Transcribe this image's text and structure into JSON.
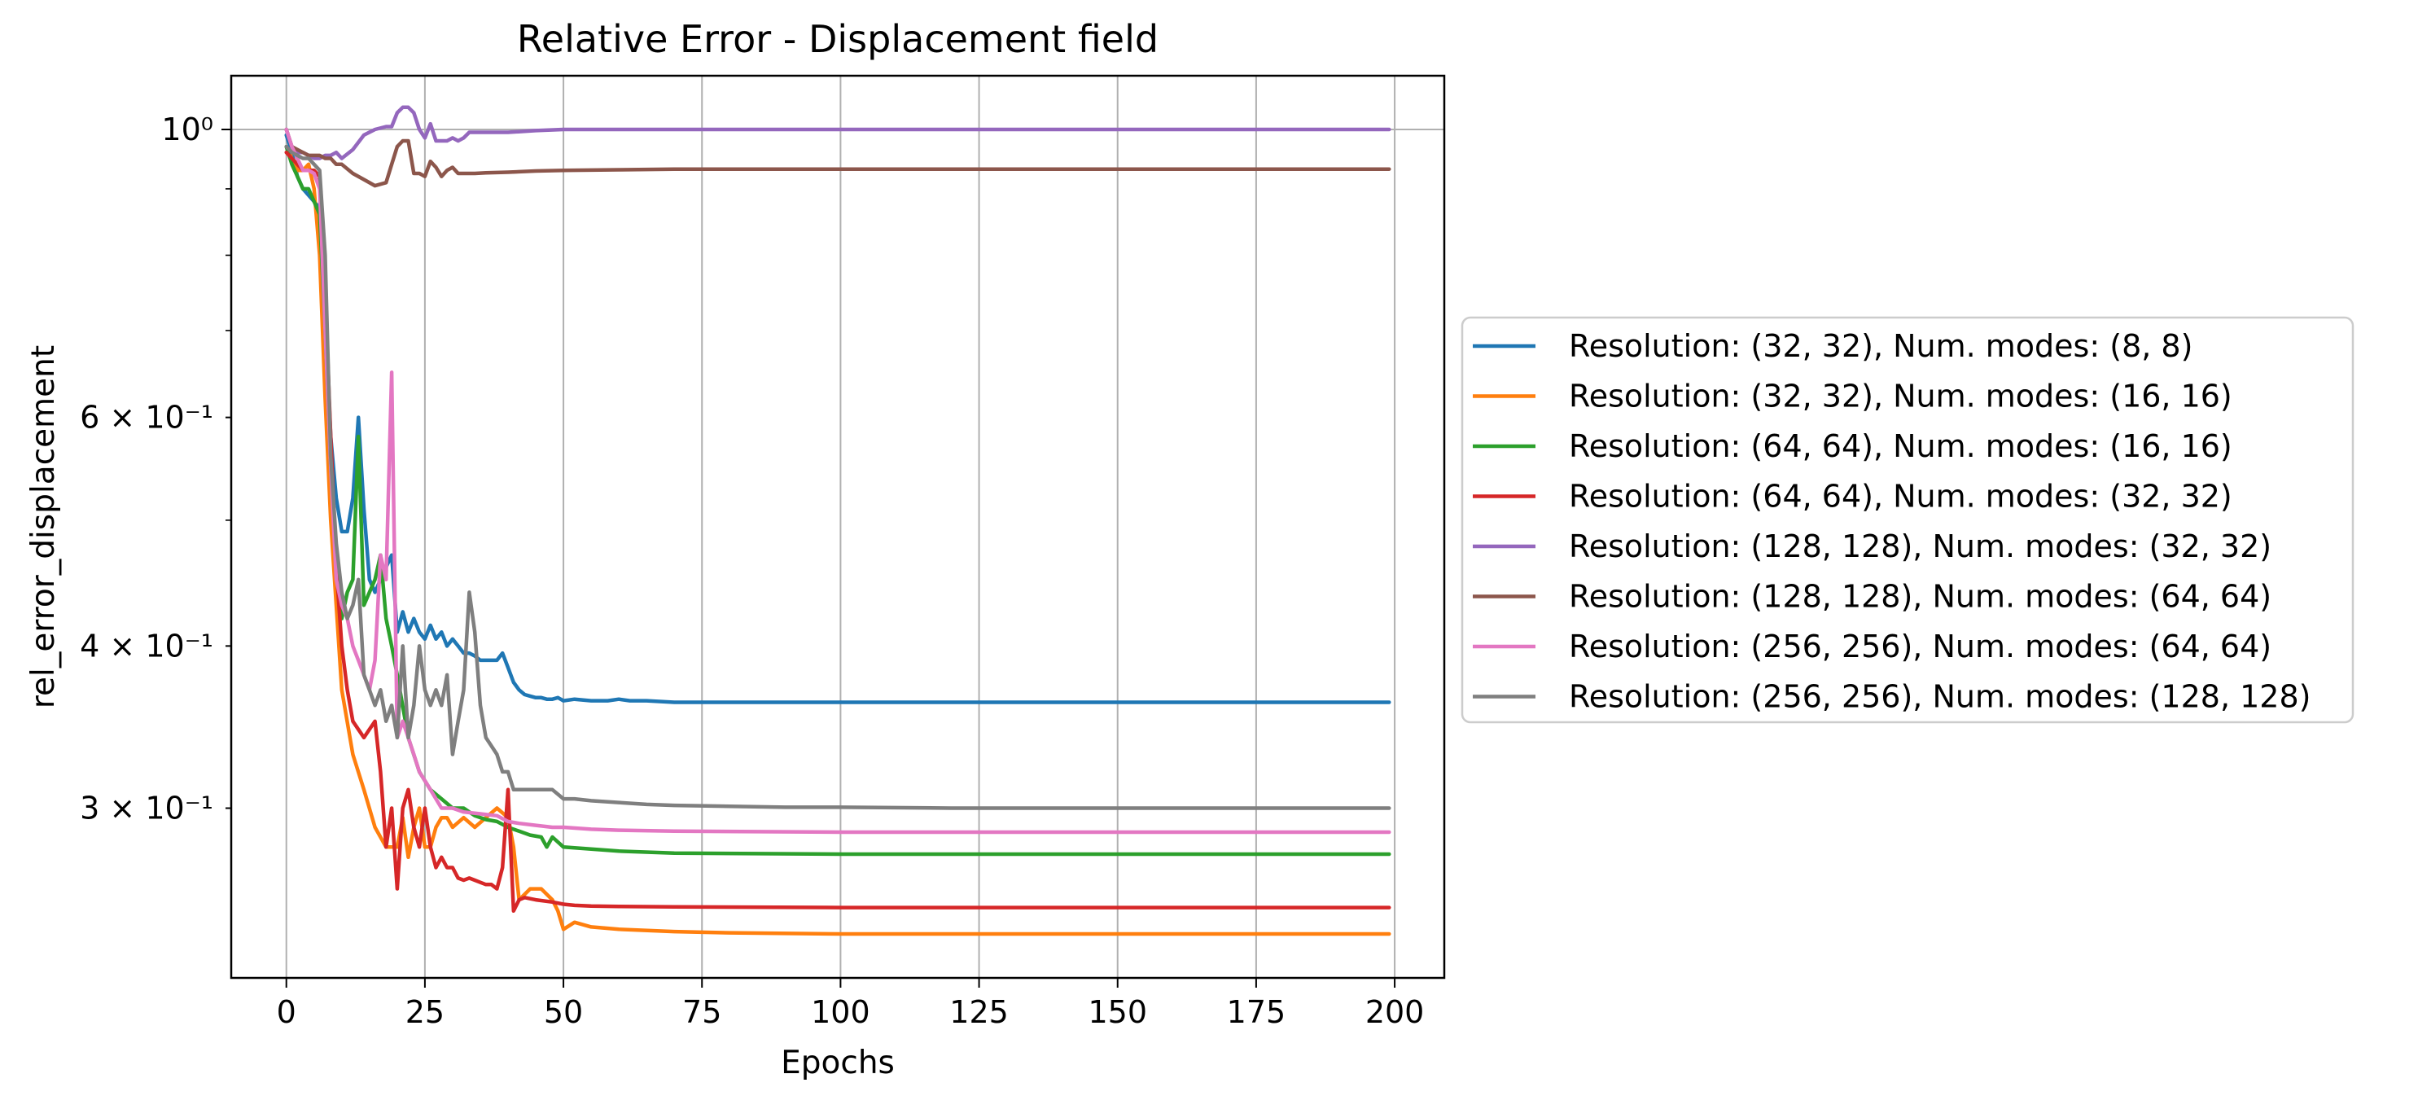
{
  "chart_data": {
    "type": "line",
    "title": "Relative Error - Displacement field",
    "xlabel": "Epochs",
    "ylabel": "rel_error_displacement",
    "xlim": [
      -9.95,
      208.95
    ],
    "ylim": [
      0.222,
      1.1
    ],
    "yscale": "log",
    "grid": true,
    "legend_position": "right, outside plot",
    "x_ticks": [
      0,
      25,
      50,
      75,
      100,
      125,
      150,
      175,
      200
    ],
    "x_tick_labels": [
      "0",
      "25",
      "50",
      "75",
      "100",
      "125",
      "150",
      "175",
      "200"
    ],
    "y_ticks": [
      1.0,
      0.6,
      0.4,
      0.3
    ],
    "y_tick_labels": [
      "10⁰",
      "6 × 10⁻¹",
      "4 × 10⁻¹",
      "3 × 10⁻¹"
    ],
    "series": [
      {
        "name": "Resolution: (32, 32), Num. modes: (8, 8)",
        "color": "#1f77b4",
        "x": [
          0,
          1,
          2,
          3,
          4,
          5,
          6,
          7,
          8,
          9,
          10,
          11,
          12,
          13,
          14,
          15,
          16,
          17,
          18,
          19,
          20,
          21,
          22,
          23,
          24,
          25,
          26,
          27,
          28,
          29,
          30,
          31,
          32,
          33,
          34,
          35,
          36,
          37,
          38,
          39,
          40,
          41,
          42,
          43,
          44,
          45,
          46,
          47,
          48,
          49,
          50,
          52,
          55,
          58,
          60,
          62,
          65,
          70,
          80,
          90,
          100,
          120,
          150,
          175,
          199
        ],
        "y": [
          0.99,
          0.96,
          0.92,
          0.9,
          0.89,
          0.88,
          0.87,
          0.72,
          0.58,
          0.52,
          0.49,
          0.49,
          0.52,
          0.6,
          0.51,
          0.45,
          0.44,
          0.45,
          0.46,
          0.47,
          0.41,
          0.425,
          0.41,
          0.42,
          0.41,
          0.405,
          0.415,
          0.405,
          0.41,
          0.4,
          0.405,
          0.4,
          0.395,
          0.395,
          0.393,
          0.39,
          0.39,
          0.39,
          0.39,
          0.395,
          0.385,
          0.375,
          0.37,
          0.367,
          0.366,
          0.365,
          0.365,
          0.364,
          0.364,
          0.365,
          0.363,
          0.364,
          0.363,
          0.363,
          0.364,
          0.363,
          0.363,
          0.362,
          0.362,
          0.362,
          0.362,
          0.362,
          0.362,
          0.362,
          0.362
        ]
      },
      {
        "name": "Resolution: (32, 32), Num. modes: (16, 16)",
        "color": "#ff7f0e",
        "x": [
          0,
          1,
          2,
          3,
          4,
          5,
          6,
          7,
          8,
          9,
          10,
          12,
          14,
          16,
          18,
          20,
          21,
          22,
          23,
          24,
          25,
          26,
          27,
          28,
          29,
          30,
          32,
          34,
          36,
          38,
          40,
          41,
          42,
          44,
          46,
          48,
          49,
          50,
          52,
          55,
          60,
          70,
          80,
          100,
          120,
          150,
          199
        ],
        "y": [
          0.97,
          0.95,
          0.93,
          0.93,
          0.94,
          0.9,
          0.8,
          0.62,
          0.5,
          0.43,
          0.37,
          0.33,
          0.31,
          0.29,
          0.28,
          0.28,
          0.295,
          0.275,
          0.29,
          0.3,
          0.28,
          0.28,
          0.29,
          0.295,
          0.295,
          0.29,
          0.295,
          0.29,
          0.295,
          0.3,
          0.295,
          0.28,
          0.255,
          0.26,
          0.26,
          0.255,
          0.25,
          0.242,
          0.245,
          0.243,
          0.242,
          0.241,
          0.2405,
          0.24,
          0.24,
          0.24,
          0.24
        ]
      },
      {
        "name": "Resolution: (64, 64), Num. modes: (16, 16)",
        "color": "#2ca02c",
        "x": [
          0,
          1,
          2,
          3,
          4,
          5,
          6,
          7,
          8,
          9,
          10,
          11,
          12,
          13,
          14,
          15,
          16,
          17,
          18,
          19,
          20,
          22,
          24,
          26,
          28,
          30,
          32,
          34,
          36,
          38,
          40,
          42,
          44,
          46,
          47,
          48,
          50,
          55,
          60,
          70,
          100,
          150,
          199
        ],
        "y": [
          0.97,
          0.94,
          0.92,
          0.9,
          0.9,
          0.88,
          0.86,
          0.7,
          0.55,
          0.47,
          0.42,
          0.44,
          0.45,
          0.58,
          0.43,
          0.44,
          0.45,
          0.47,
          0.42,
          0.4,
          0.38,
          0.34,
          0.32,
          0.31,
          0.305,
          0.3,
          0.3,
          0.296,
          0.294,
          0.293,
          0.29,
          0.288,
          0.286,
          0.285,
          0.28,
          0.285,
          0.28,
          0.279,
          0.278,
          0.277,
          0.2765,
          0.2765,
          0.2765
        ]
      },
      {
        "name": "Resolution: (64, 64), Num. modes: (32, 32)",
        "color": "#d62728",
        "x": [
          0,
          1,
          2,
          3,
          4,
          5,
          6,
          7,
          8,
          9,
          10,
          11,
          12,
          13,
          14,
          15,
          16,
          17,
          18,
          19,
          20,
          21,
          22,
          23,
          24,
          25,
          26,
          27,
          28,
          29,
          30,
          31,
          32,
          33,
          34,
          35,
          36,
          37,
          38,
          39,
          40,
          41,
          42,
          43,
          45,
          48,
          50,
          52,
          55,
          60,
          70,
          100,
          150,
          199
        ],
        "y": [
          0.96,
          0.95,
          0.94,
          0.93,
          0.93,
          0.93,
          0.92,
          0.75,
          0.58,
          0.46,
          0.4,
          0.37,
          0.35,
          0.345,
          0.34,
          0.345,
          0.35,
          0.32,
          0.28,
          0.3,
          0.26,
          0.3,
          0.31,
          0.29,
          0.28,
          0.3,
          0.28,
          0.27,
          0.275,
          0.27,
          0.27,
          0.265,
          0.264,
          0.265,
          0.264,
          0.263,
          0.262,
          0.262,
          0.26,
          0.27,
          0.31,
          0.25,
          0.255,
          0.256,
          0.255,
          0.254,
          0.253,
          0.2525,
          0.2522,
          0.252,
          0.2518,
          0.2515,
          0.2515,
          0.2515
        ]
      },
      {
        "name": "Resolution: (128, 128), Num. modes: (32, 32)",
        "color": "#9467bd",
        "x": [
          0,
          1,
          2,
          3,
          4,
          5,
          6,
          7,
          8,
          9,
          10,
          12,
          14,
          16,
          18,
          19,
          20,
          21,
          22,
          23,
          24,
          25,
          26,
          27,
          28,
          29,
          30,
          31,
          32,
          33,
          34,
          36,
          40,
          45,
          50,
          60,
          80,
          100,
          150,
          199
        ],
        "y": [
          1.0,
          0.97,
          0.96,
          0.96,
          0.955,
          0.95,
          0.95,
          0.955,
          0.955,
          0.96,
          0.95,
          0.965,
          0.99,
          1.0,
          1.005,
          1.005,
          1.03,
          1.04,
          1.04,
          1.03,
          1.0,
          0.985,
          1.01,
          0.98,
          0.98,
          0.98,
          0.985,
          0.98,
          0.985,
          0.995,
          0.995,
          0.995,
          0.995,
          0.998,
          1.0,
          1.0,
          1.0,
          1.0,
          1.0,
          1.0
        ]
      },
      {
        "name": "Resolution: (128, 128), Num. modes: (64, 64)",
        "color": "#8c564b",
        "x": [
          0,
          1,
          2,
          3,
          4,
          5,
          6,
          7,
          8,
          9,
          10,
          12,
          14,
          16,
          18,
          19,
          20,
          21,
          22,
          23,
          24,
          25,
          26,
          27,
          28,
          29,
          30,
          31,
          32,
          34,
          36,
          40,
          45,
          50,
          60,
          70,
          80,
          100,
          150,
          199
        ],
        "y": [
          1.0,
          0.97,
          0.965,
          0.96,
          0.955,
          0.955,
          0.955,
          0.95,
          0.95,
          0.94,
          0.94,
          0.925,
          0.915,
          0.905,
          0.91,
          0.94,
          0.97,
          0.98,
          0.98,
          0.925,
          0.925,
          0.92,
          0.945,
          0.935,
          0.92,
          0.93,
          0.935,
          0.925,
          0.925,
          0.925,
          0.926,
          0.927,
          0.929,
          0.93,
          0.931,
          0.932,
          0.932,
          0.932,
          0.932,
          0.932
        ]
      },
      {
        "name": "Resolution: (256, 256), Num. modes: (64, 64)",
        "color": "#e377c2",
        "x": [
          0,
          1,
          2,
          3,
          4,
          5,
          6,
          7,
          8,
          9,
          10,
          11,
          12,
          13,
          14,
          15,
          16,
          17,
          18,
          19,
          20,
          21,
          22,
          23,
          24,
          25,
          26,
          28,
          30,
          32,
          35,
          38,
          40,
          42,
          45,
          48,
          50,
          55,
          60,
          70,
          100,
          150,
          199
        ],
        "y": [
          1.0,
          0.97,
          0.95,
          0.93,
          0.93,
          0.925,
          0.9,
          0.7,
          0.55,
          0.45,
          0.43,
          0.42,
          0.4,
          0.39,
          0.38,
          0.37,
          0.39,
          0.47,
          0.45,
          0.65,
          0.34,
          0.35,
          0.34,
          0.33,
          0.32,
          0.315,
          0.31,
          0.3,
          0.3,
          0.298,
          0.297,
          0.296,
          0.293,
          0.292,
          0.291,
          0.29,
          0.29,
          0.289,
          0.2885,
          0.288,
          0.2875,
          0.2875,
          0.2875
        ]
      },
      {
        "name": "Resolution: (256, 256), Num. modes: (128, 128)",
        "color": "#7f7f7f",
        "x": [
          0,
          1,
          2,
          3,
          4,
          5,
          6,
          7,
          8,
          9,
          10,
          11,
          12,
          13,
          14,
          15,
          16,
          17,
          18,
          19,
          20,
          21,
          22,
          23,
          24,
          25,
          26,
          27,
          28,
          29,
          30,
          31,
          32,
          33,
          34,
          35,
          36,
          37,
          38,
          39,
          40,
          41,
          42,
          45,
          48,
          50,
          52,
          55,
          60,
          65,
          70,
          80,
          90,
          100,
          120,
          150,
          199
        ],
        "y": [
          0.97,
          0.96,
          0.955,
          0.95,
          0.95,
          0.94,
          0.93,
          0.8,
          0.56,
          0.48,
          0.44,
          0.42,
          0.43,
          0.45,
          0.38,
          0.37,
          0.36,
          0.37,
          0.35,
          0.36,
          0.34,
          0.4,
          0.34,
          0.36,
          0.4,
          0.37,
          0.36,
          0.37,
          0.36,
          0.38,
          0.33,
          0.35,
          0.37,
          0.44,
          0.41,
          0.36,
          0.34,
          0.335,
          0.33,
          0.32,
          0.32,
          0.31,
          0.31,
          0.31,
          0.31,
          0.305,
          0.305,
          0.304,
          0.303,
          0.302,
          0.3015,
          0.301,
          0.3005,
          0.3005,
          0.3,
          0.3,
          0.3
        ]
      }
    ]
  }
}
